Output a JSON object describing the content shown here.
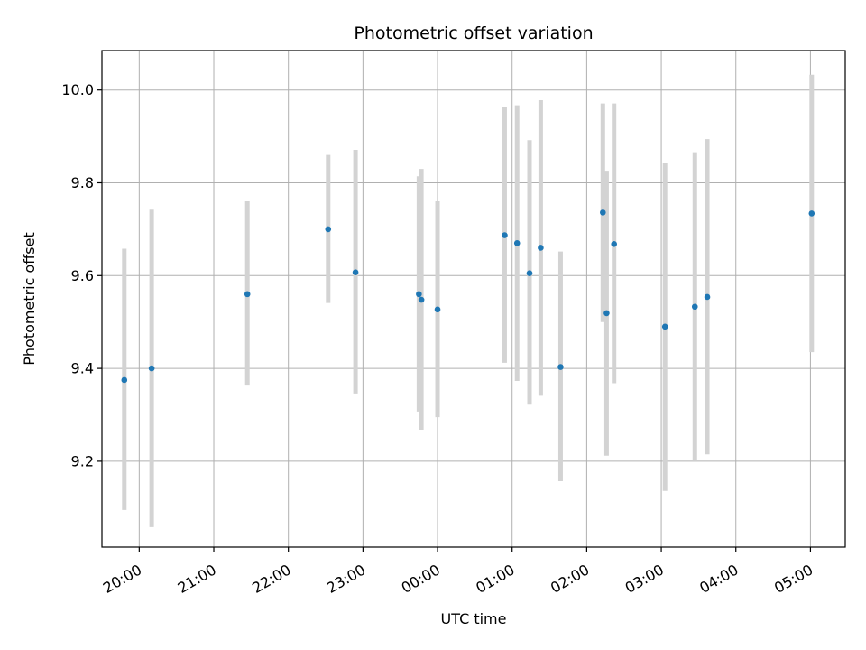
{
  "chart_data": {
    "type": "scatter",
    "title": "Photometric offset variation",
    "xlabel": "UTC time",
    "ylabel": "Photometric offset",
    "x_unit": "UTC time",
    "xlim": [
      "19:30",
      "05:28"
    ],
    "ylim": [
      9.015,
      10.085
    ],
    "x_ticks": [
      "20:00",
      "21:00",
      "22:00",
      "23:00",
      "00:00",
      "01:00",
      "02:00",
      "03:00",
      "04:00",
      "05:00"
    ],
    "y_ticks": [
      9.2,
      9.4,
      9.6,
      9.8,
      10.0
    ],
    "y_tick_labels": [
      "9.2",
      "9.4",
      "9.6",
      "9.8",
      "10.0"
    ],
    "grid": true,
    "colors": {
      "point": "#1f77b4",
      "errorbar": "#d3d3d3",
      "grid": "#b0b0b0"
    },
    "points": [
      {
        "x": "19:48",
        "y": 9.375,
        "ylow": 9.095,
        "yhigh": 9.658
      },
      {
        "x": "20:10",
        "y": 9.4,
        "ylow": 9.058,
        "yhigh": 9.742
      },
      {
        "x": "21:27",
        "y": 9.56,
        "ylow": 9.363,
        "yhigh": 9.76
      },
      {
        "x": "22:32",
        "y": 9.7,
        "ylow": 9.541,
        "yhigh": 9.86
      },
      {
        "x": "22:54",
        "y": 9.607,
        "ylow": 9.346,
        "yhigh": 9.871
      },
      {
        "x": "23:45",
        "y": 9.56,
        "ylow": 9.307,
        "yhigh": 9.814
      },
      {
        "x": "23:47",
        "y": 9.548,
        "ylow": 9.268,
        "yhigh": 9.83
      },
      {
        "x": "00:00",
        "y": 9.527,
        "ylow": 9.295,
        "yhigh": 9.76
      },
      {
        "x": "00:54",
        "y": 9.687,
        "ylow": 9.412,
        "yhigh": 9.963
      },
      {
        "x": "01:04",
        "y": 9.67,
        "ylow": 9.373,
        "yhigh": 9.967
      },
      {
        "x": "01:14",
        "y": 9.605,
        "ylow": 9.322,
        "yhigh": 9.892
      },
      {
        "x": "01:23",
        "y": 9.66,
        "ylow": 9.341,
        "yhigh": 9.978
      },
      {
        "x": "01:39",
        "y": 9.403,
        "ylow": 9.157,
        "yhigh": 9.652
      },
      {
        "x": "02:13",
        "y": 9.736,
        "ylow": 9.5,
        "yhigh": 9.971
      },
      {
        "x": "02:16",
        "y": 9.519,
        "ylow": 9.212,
        "yhigh": 9.826
      },
      {
        "x": "02:22",
        "y": 9.668,
        "ylow": 9.368,
        "yhigh": 9.971
      },
      {
        "x": "03:03",
        "y": 9.49,
        "ylow": 9.136,
        "yhigh": 9.843
      },
      {
        "x": "03:27",
        "y": 9.533,
        "ylow": 9.2,
        "yhigh": 9.866
      },
      {
        "x": "03:37",
        "y": 9.554,
        "ylow": 9.215,
        "yhigh": 9.894
      },
      {
        "x": "05:01",
        "y": 9.734,
        "ylow": 9.435,
        "yhigh": 10.033
      }
    ]
  }
}
